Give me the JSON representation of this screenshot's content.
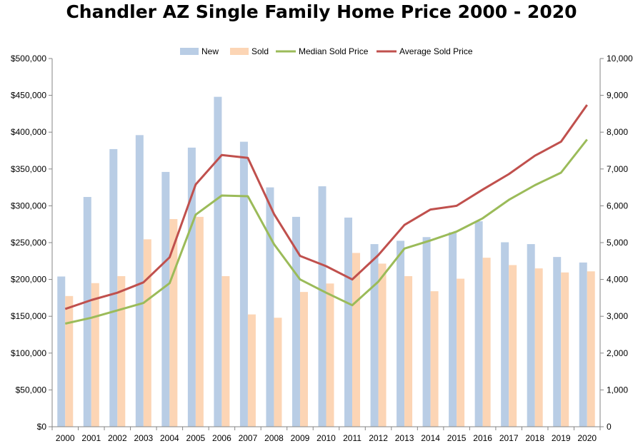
{
  "chart_data": {
    "type": "bar",
    "title": "Chandler AZ Single Family Home Price 2000 - 2020",
    "categories": [
      "2000",
      "2001",
      "2002",
      "2003",
      "2004",
      "2005",
      "2006",
      "2007",
      "2008",
      "2009",
      "2010",
      "2011",
      "2012",
      "2013",
      "2014",
      "2015",
      "2016",
      "2017",
      "2018",
      "2019",
      "2020"
    ],
    "left_axis": {
      "ylim": [
        0,
        500000
      ],
      "ticks": [
        "$0",
        "$50,000",
        "$100,000",
        "$150,000",
        "$200,000",
        "$250,000",
        "$300,000",
        "$350,000",
        "$400,000",
        "$450,000",
        "$500,000"
      ]
    },
    "right_axis": {
      "ylim": [
        0,
        10000
      ],
      "ticks": [
        "0",
        "1,000",
        "2,000",
        "3,000",
        "4,000",
        "5,000",
        "6,000",
        "7,000",
        "8,000",
        "9,000",
        "10,000"
      ]
    },
    "legend_position": "top",
    "series": [
      {
        "name": "New",
        "kind": "bar",
        "axis": "right",
        "color": "#b9cde5",
        "values": [
          4080,
          6240,
          7540,
          7920,
          6920,
          7580,
          8960,
          7740,
          6500,
          5700,
          6530,
          5680,
          4960,
          5050,
          5150,
          5280,
          5580,
          5010,
          4960,
          4610,
          4460
        ]
      },
      {
        "name": "Sold",
        "kind": "bar",
        "axis": "right",
        "color": "#fcd5b5",
        "values": [
          3550,
          3900,
          4090,
          5090,
          5640,
          5700,
          4090,
          3050,
          2960,
          3660,
          3890,
          4720,
          4430,
          4090,
          3680,
          4020,
          4590,
          4390,
          4300,
          4190,
          4220
        ]
      },
      {
        "name": "Median Sold Price",
        "kind": "line",
        "axis": "left",
        "color": "#9bbb59",
        "values": [
          140000,
          148000,
          158000,
          168000,
          195000,
          288000,
          314000,
          313000,
          248000,
          200000,
          182000,
          165000,
          197000,
          242000,
          253000,
          265000,
          283000,
          308000,
          328000,
          345000,
          390000
        ]
      },
      {
        "name": "Average Sold Price",
        "kind": "line",
        "axis": "left",
        "color": "#c0504d",
        "values": [
          160000,
          172000,
          182000,
          196000,
          230000,
          329000,
          369000,
          365000,
          289000,
          232000,
          218000,
          200000,
          233000,
          274000,
          295000,
          300000,
          322000,
          343000,
          368000,
          387000,
          437000
        ]
      }
    ]
  }
}
